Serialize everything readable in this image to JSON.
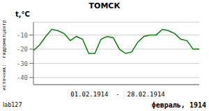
{
  "chart_data": {
    "type": "line",
    "title": "ТОМСК",
    "ylabel": "t,°C",
    "xlabel": "01.02.1914  -  28.02.1914",
    "annotations": [
      "источник:  гидрометцентр",
      "lab127",
      "февраль, 1914"
    ],
    "x": [
      1,
      2,
      3,
      4,
      5,
      6,
      7,
      8,
      9,
      10,
      11,
      12,
      13,
      14,
      15,
      16,
      17,
      18,
      19,
      20,
      21,
      22,
      23,
      24,
      25,
      26,
      27,
      28
    ],
    "values": [
      -21,
      -17,
      -11,
      -6,
      -7,
      -9,
      -14,
      -11,
      -13,
      -23,
      -23,
      -13,
      -11,
      -12,
      -20,
      -23,
      -22,
      -15,
      -11,
      -10,
      -10,
      -6,
      -7,
      -9,
      -13,
      -14,
      -20,
      -20
    ],
    "color": "#008000",
    "xlim": [
      1,
      28
    ],
    "ylim": [
      -45,
      -1
    ],
    "yticks": [
      -40,
      -30,
      -20,
      -10
    ],
    "grid": true,
    "tick_labels": "y"
  }
}
